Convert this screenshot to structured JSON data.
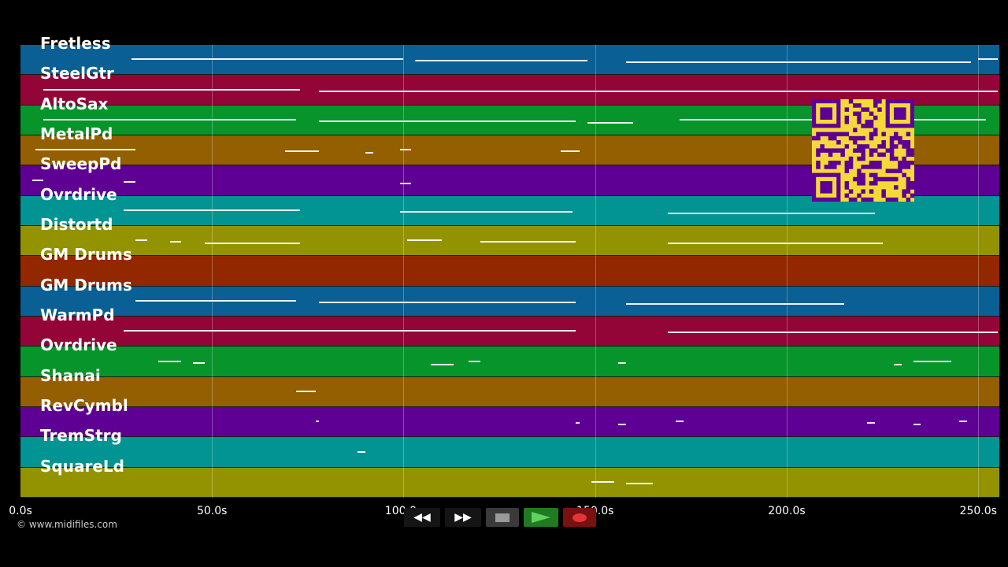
{
  "lanes": [
    {
      "label": "Fretless",
      "color": "#0a5f94"
    },
    {
      "label": "SteelGtr",
      "color": "#930536"
    },
    {
      "label": "AltoSax",
      "color": "#07942a"
    },
    {
      "label": "MetalPd",
      "color": "#935f00"
    },
    {
      "label": "SweepPd",
      "color": "#5f0094"
    },
    {
      "label": "Ovrdrive",
      "color": "#029393"
    },
    {
      "label": "Distortd",
      "color": "#939301"
    },
    {
      "label": "GM Drums",
      "color": "#932700"
    },
    {
      "label": "GM Drums",
      "color": "#0a5f94"
    },
    {
      "label": "WarmPd",
      "color": "#930536"
    },
    {
      "label": "Ovrdrive",
      "color": "#07942a"
    },
    {
      "label": "Shanai",
      "color": "#935f00"
    },
    {
      "label": "RevCymbl",
      "color": "#5f0094"
    },
    {
      "label": "TremStrg",
      "color": "#029393"
    },
    {
      "label": "SquareLd",
      "color": "#939301"
    }
  ],
  "timeline": {
    "max_seconds": 255.5,
    "ticks": [
      {
        "value": 0,
        "label": "0.0s"
      },
      {
        "value": 50,
        "label": "50.0s"
      },
      {
        "value": 100,
        "label": "100.0s"
      },
      {
        "value": 150,
        "label": "150.0s"
      },
      {
        "value": 200,
        "label": "200.0s"
      },
      {
        "value": 250,
        "label": "250.0s"
      }
    ]
  },
  "notes": [
    {
      "lane": 0,
      "segments": [
        [
          29,
          100
        ],
        [
          103,
          148
        ],
        [
          158,
          248
        ],
        [
          250,
          255
        ]
      ]
    },
    {
      "lane": 1,
      "segments": [
        [
          6,
          73
        ],
        [
          78,
          255
        ]
      ]
    },
    {
      "lane": 2,
      "segments": [
        [
          6,
          72
        ],
        [
          78,
          145
        ],
        [
          148,
          160
        ],
        [
          172,
          252
        ]
      ]
    },
    {
      "lane": 3,
      "segments": [
        [
          4,
          30
        ],
        [
          69,
          78
        ],
        [
          90,
          92
        ],
        [
          99,
          102
        ],
        [
          141,
          146
        ]
      ]
    },
    {
      "lane": 4,
      "segments": [
        [
          3,
          6
        ],
        [
          27,
          30
        ],
        [
          99,
          102
        ]
      ]
    },
    {
      "lane": 5,
      "segments": [
        [
          27,
          73
        ],
        [
          99,
          144
        ],
        [
          169,
          223
        ]
      ]
    },
    {
      "lane": 6,
      "segments": [
        [
          30,
          33
        ],
        [
          39,
          42
        ],
        [
          48,
          73
        ],
        [
          101,
          110
        ],
        [
          120,
          145
        ],
        [
          169,
          225
        ]
      ]
    },
    {
      "lane": 8,
      "segments": [
        [
          30,
          72
        ],
        [
          78,
          145
        ],
        [
          158,
          215
        ]
      ]
    },
    {
      "lane": 9,
      "segments": [
        [
          27,
          145
        ],
        [
          169,
          255
        ]
      ]
    },
    {
      "lane": 10,
      "segments": [
        [
          36,
          42
        ],
        [
          45,
          48
        ],
        [
          107,
          113
        ],
        [
          117,
          120
        ],
        [
          156,
          158
        ],
        [
          228,
          230
        ],
        [
          233,
          243
        ]
      ]
    },
    {
      "lane": 11,
      "segments": [
        [
          72,
          77
        ]
      ]
    },
    {
      "lane": 12,
      "segments": [
        [
          77,
          78
        ],
        [
          145,
          146
        ],
        [
          156,
          158
        ],
        [
          171,
          173
        ],
        [
          221,
          223
        ],
        [
          233,
          235
        ],
        [
          245,
          247
        ]
      ]
    },
    {
      "lane": 13,
      "segments": [
        [
          88,
          90
        ]
      ]
    },
    {
      "lane": 14,
      "segments": [
        [
          149,
          155
        ],
        [
          158,
          165
        ]
      ]
    }
  ],
  "transport": {
    "rewind_label": "◀◀",
    "forward_label": "▶▶"
  },
  "copyright": "© www.midifiles.com"
}
